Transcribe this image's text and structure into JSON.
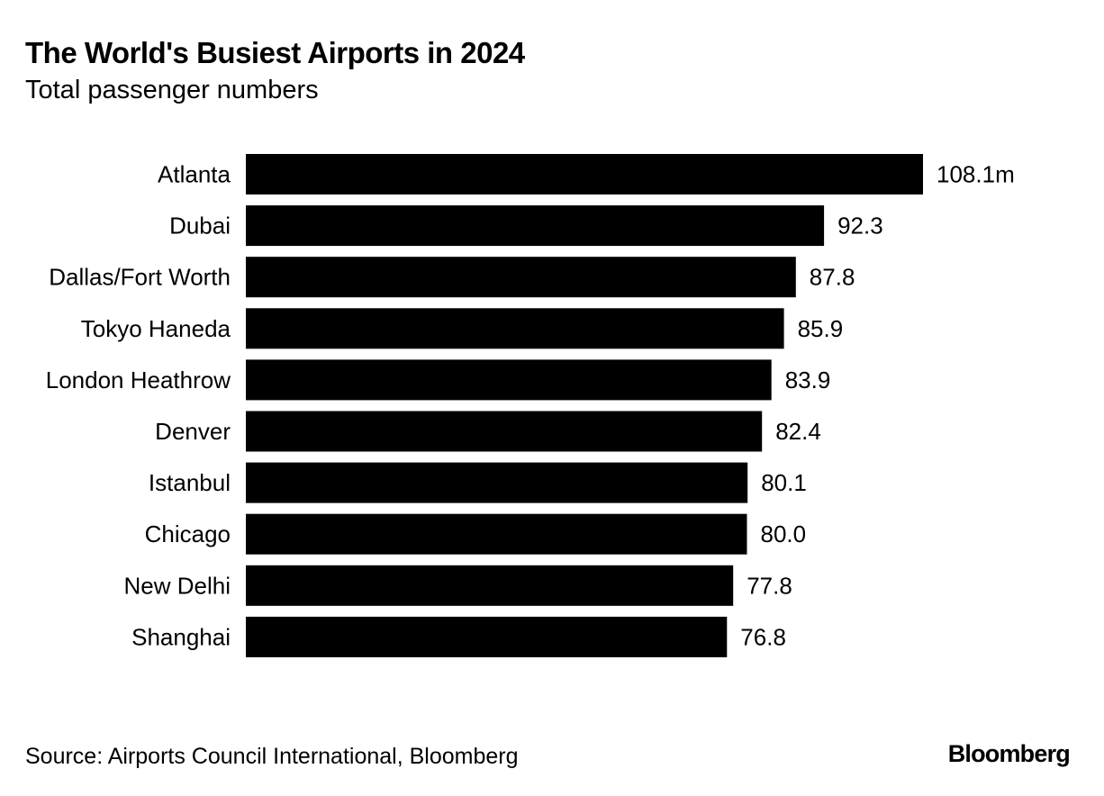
{
  "header": {
    "title": "The World's Busiest Airports in 2024",
    "subtitle": "Total passenger numbers"
  },
  "footer": {
    "source": "Source: Airports Council International, Bloomberg",
    "brand": "Bloomberg"
  },
  "colors": {
    "bar": "#000000",
    "background": "#ffffff",
    "text": "#000000"
  },
  "chart_data": {
    "type": "bar",
    "orientation": "horizontal",
    "title": "The World's Busiest Airports in 2024",
    "subtitle": "Total passenger numbers",
    "unit": "m",
    "categories": [
      "Atlanta",
      "Dubai",
      "Dallas/Fort Worth",
      "Tokyo Haneda",
      "London Heathrow",
      "Denver",
      "Istanbul",
      "Chicago",
      "New Delhi",
      "Shanghai"
    ],
    "values": [
      108.1,
      92.3,
      87.8,
      85.9,
      83.9,
      82.4,
      80.1,
      80.0,
      77.8,
      76.8
    ],
    "value_labels": [
      "108.1m",
      "92.3",
      "87.8",
      "85.9",
      "83.9",
      "82.4",
      "80.1",
      "80.0",
      "77.8",
      "76.8"
    ],
    "xlim": [
      0,
      108.1
    ],
    "grid": false,
    "legend": "none"
  }
}
